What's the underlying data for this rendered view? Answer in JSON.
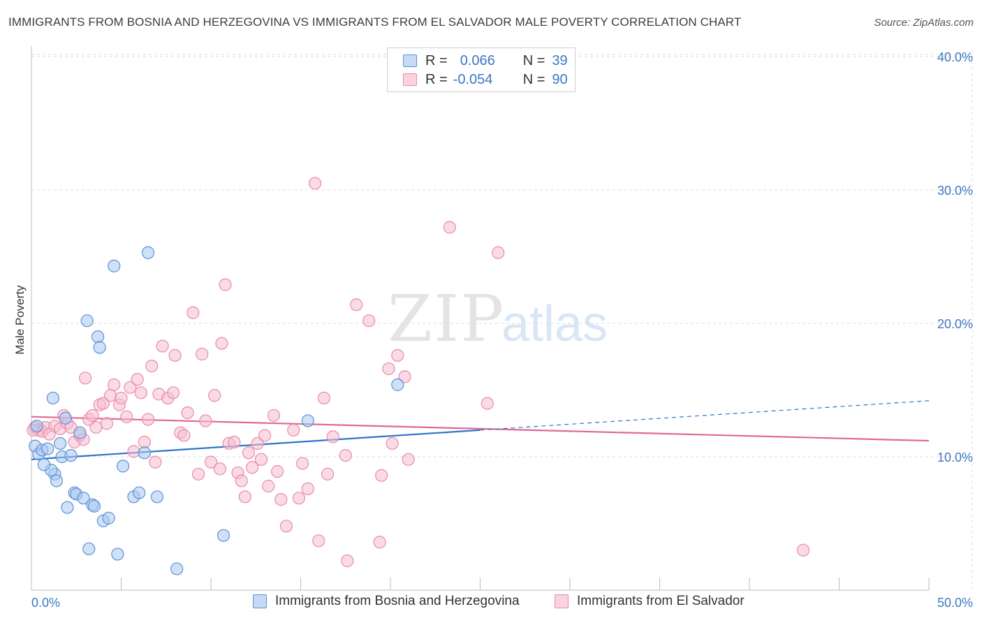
{
  "title": "IMMIGRANTS FROM BOSNIA AND HERZEGOVINA VS IMMIGRANTS FROM EL SALVADOR MALE POVERTY CORRELATION CHART",
  "source": "Source: ZipAtlas.com",
  "watermark": {
    "zip": "ZIP",
    "atlas": "atlas"
  },
  "stats": [
    {
      "r_label": "R =",
      "r_value": "0.066",
      "n_label": "N =",
      "n_value": "39"
    },
    {
      "r_label": "R =",
      "r_value": "-0.054",
      "n_label": "N =",
      "n_value": "90"
    }
  ],
  "colors": {
    "blue_fill": "#a9c8f0",
    "blue_stroke": "#5b91d6",
    "blue_line": "#2f72c9",
    "pink_fill": "#f6bdd0",
    "pink_stroke": "#e98aab",
    "pink_line": "#e0688f",
    "axis_label": "#3b78c4",
    "grid": "#dcdcdc"
  },
  "chart_data": {
    "type": "scatter",
    "xlabel": "",
    "ylabel": "Male Poverty",
    "xlim": [
      0,
      50
    ],
    "ylim": [
      0,
      42
    ],
    "x_tick_labels": [
      "0.0%",
      "50.0%"
    ],
    "y_ticks": [
      10,
      20,
      30,
      40
    ],
    "y_tick_labels": [
      "10.0%",
      "20.0%",
      "30.0%",
      "40.0%"
    ],
    "grid": true,
    "legend_position": "bottom",
    "series": [
      {
        "name": "Immigrants from Bosnia and Herzegovina",
        "color": "blue",
        "trend": {
          "x": [
            0,
            25
          ],
          "y": [
            9.8,
            12.0
          ]
        },
        "trend_extension": {
          "x": [
            25,
            50
          ],
          "y": [
            12.0,
            14.2
          ]
        },
        "points": [
          [
            0.2,
            10.8
          ],
          [
            0.4,
            10.2
          ],
          [
            0.6,
            10.5
          ],
          [
            0.9,
            10.6
          ],
          [
            1.2,
            14.4
          ],
          [
            1.3,
            8.7
          ],
          [
            1.1,
            9.0
          ],
          [
            0.7,
            9.4
          ],
          [
            1.4,
            8.2
          ],
          [
            1.6,
            11.0
          ],
          [
            1.7,
            10.0
          ],
          [
            1.9,
            12.9
          ],
          [
            2.2,
            10.1
          ],
          [
            2.0,
            6.2
          ],
          [
            2.4,
            7.3
          ],
          [
            2.5,
            7.2
          ],
          [
            2.9,
            6.9
          ],
          [
            2.7,
            11.8
          ],
          [
            3.1,
            20.2
          ],
          [
            3.7,
            19.0
          ],
          [
            3.8,
            18.2
          ],
          [
            3.4,
            6.4
          ],
          [
            3.5,
            6.3
          ],
          [
            4.0,
            5.2
          ],
          [
            4.3,
            5.4
          ],
          [
            3.2,
            3.1
          ],
          [
            4.6,
            24.3
          ],
          [
            4.8,
            2.7
          ],
          [
            5.1,
            9.3
          ],
          [
            5.7,
            7.0
          ],
          [
            6.0,
            7.3
          ],
          [
            6.3,
            10.3
          ],
          [
            6.5,
            25.3
          ],
          [
            7.0,
            7.0
          ],
          [
            8.1,
            1.6
          ],
          [
            10.7,
            4.1
          ],
          [
            15.4,
            12.7
          ],
          [
            20.4,
            15.4
          ],
          [
            0.3,
            12.3
          ]
        ]
      },
      {
        "name": "Immigrants from El Salvador",
        "color": "pink",
        "trend": {
          "x": [
            0,
            50
          ],
          "y": [
            13.0,
            11.2
          ]
        },
        "points": [
          [
            0.2,
            12.2
          ],
          [
            0.4,
            12.0
          ],
          [
            0.6,
            11.9
          ],
          [
            0.8,
            12.2
          ],
          [
            1.0,
            11.7
          ],
          [
            1.3,
            12.3
          ],
          [
            1.6,
            12.1
          ],
          [
            1.8,
            13.1
          ],
          [
            2.0,
            12.5
          ],
          [
            2.2,
            12.2
          ],
          [
            2.4,
            11.1
          ],
          [
            2.7,
            11.6
          ],
          [
            2.9,
            11.3
          ],
          [
            3.0,
            15.9
          ],
          [
            3.2,
            12.8
          ],
          [
            3.4,
            13.1
          ],
          [
            3.6,
            12.2
          ],
          [
            3.8,
            13.9
          ],
          [
            4.0,
            14.0
          ],
          [
            4.2,
            12.5
          ],
          [
            4.4,
            14.6
          ],
          [
            4.6,
            15.4
          ],
          [
            4.9,
            13.9
          ],
          [
            5.0,
            14.4
          ],
          [
            5.3,
            13.0
          ],
          [
            5.5,
            15.2
          ],
          [
            5.7,
            10.4
          ],
          [
            5.9,
            15.8
          ],
          [
            6.1,
            14.8
          ],
          [
            6.3,
            11.1
          ],
          [
            6.5,
            12.8
          ],
          [
            6.7,
            16.8
          ],
          [
            6.9,
            9.6
          ],
          [
            7.1,
            14.7
          ],
          [
            7.3,
            18.3
          ],
          [
            7.6,
            14.4
          ],
          [
            7.9,
            14.8
          ],
          [
            8.0,
            17.6
          ],
          [
            8.3,
            11.8
          ],
          [
            8.5,
            11.6
          ],
          [
            8.7,
            13.3
          ],
          [
            9.0,
            20.8
          ],
          [
            9.3,
            8.7
          ],
          [
            9.5,
            17.7
          ],
          [
            9.7,
            12.7
          ],
          [
            10.0,
            9.6
          ],
          [
            10.2,
            14.6
          ],
          [
            10.5,
            9.1
          ],
          [
            10.6,
            18.5
          ],
          [
            10.8,
            22.9
          ],
          [
            11.0,
            11.0
          ],
          [
            11.3,
            11.1
          ],
          [
            11.5,
            8.8
          ],
          [
            11.7,
            8.2
          ],
          [
            11.9,
            7.0
          ],
          [
            12.1,
            10.3
          ],
          [
            12.3,
            9.2
          ],
          [
            12.6,
            11.0
          ],
          [
            12.8,
            9.8
          ],
          [
            13.0,
            11.6
          ],
          [
            13.2,
            7.8
          ],
          [
            13.5,
            13.1
          ],
          [
            13.7,
            8.9
          ],
          [
            13.9,
            6.8
          ],
          [
            14.2,
            4.8
          ],
          [
            14.6,
            12.0
          ],
          [
            14.9,
            6.9
          ],
          [
            15.1,
            9.5
          ],
          [
            15.4,
            7.6
          ],
          [
            15.8,
            30.5
          ],
          [
            16.0,
            3.7
          ],
          [
            16.3,
            14.4
          ],
          [
            16.5,
            8.7
          ],
          [
            16.8,
            11.5
          ],
          [
            17.5,
            10.1
          ],
          [
            17.6,
            2.2
          ],
          [
            18.1,
            21.4
          ],
          [
            18.8,
            20.2
          ],
          [
            19.4,
            3.6
          ],
          [
            19.5,
            8.6
          ],
          [
            19.9,
            16.6
          ],
          [
            20.1,
            11.0
          ],
          [
            20.4,
            17.6
          ],
          [
            20.8,
            16.0
          ],
          [
            21.0,
            9.8
          ],
          [
            23.3,
            27.2
          ],
          [
            25.4,
            14.0
          ],
          [
            26.0,
            25.3
          ],
          [
            43.0,
            3.0
          ],
          [
            0.1,
            12.0
          ]
        ]
      }
    ]
  }
}
